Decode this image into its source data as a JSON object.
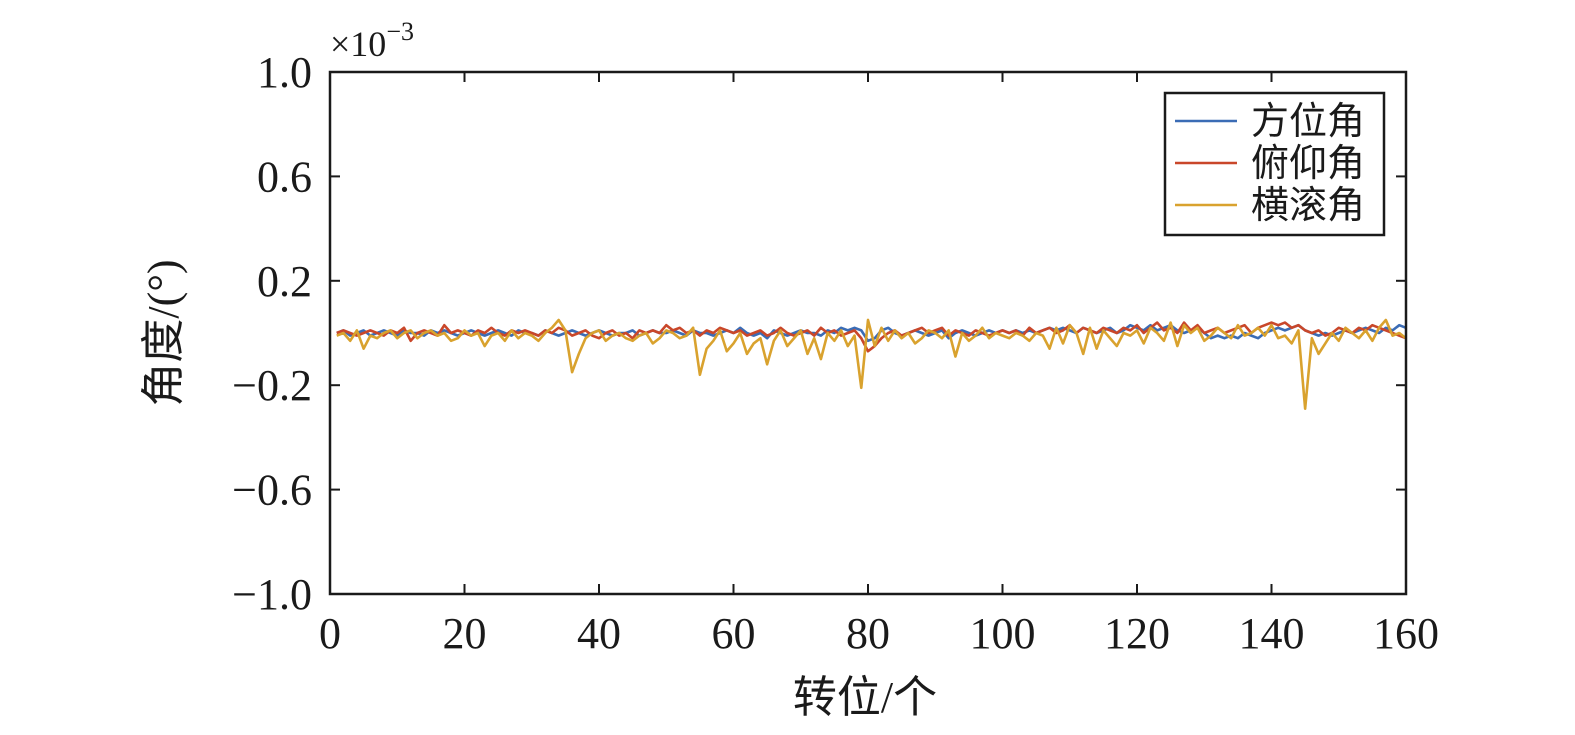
{
  "chart_data": {
    "type": "line",
    "xlabel": "转位/个",
    "ylabel": "角度/(°)",
    "y_multiplier": {
      "base": "×10",
      "exponent": "−3"
    },
    "legend": "upper right",
    "xlim": [
      0,
      160
    ],
    "xticks": [
      0,
      20,
      40,
      60,
      80,
      100,
      120,
      140,
      160
    ],
    "ylim": [
      -1.0,
      1.0
    ],
    "yticks": [
      {
        "value": 1.0,
        "label": "1.0"
      },
      0.6,
      0.2,
      {
        "value": -0.2,
        "label": "−0.2"
      },
      {
        "value": -0.6,
        "label": "−0.6"
      },
      {
        "value": -1.0,
        "label": "−1.0"
      }
    ],
    "x": [
      1,
      2,
      3,
      4,
      5,
      6,
      7,
      8,
      9,
      10,
      11,
      12,
      13,
      14,
      15,
      16,
      17,
      18,
      19,
      20,
      21,
      22,
      23,
      24,
      25,
      26,
      27,
      28,
      29,
      30,
      31,
      32,
      33,
      34,
      35,
      36,
      37,
      38,
      39,
      40,
      41,
      42,
      43,
      44,
      45,
      46,
      47,
      48,
      49,
      50,
      51,
      52,
      53,
      54,
      55,
      56,
      57,
      58,
      59,
      60,
      61,
      62,
      63,
      64,
      65,
      66,
      67,
      68,
      69,
      70,
      71,
      72,
      73,
      74,
      75,
      76,
      77,
      78,
      79,
      80,
      81,
      82,
      83,
      84,
      85,
      86,
      87,
      88,
      89,
      90,
      91,
      92,
      93,
      94,
      95,
      96,
      97,
      98,
      99,
      100,
      101,
      102,
      103,
      104,
      105,
      106,
      107,
      108,
      109,
      110,
      111,
      112,
      113,
      114,
      115,
      116,
      117,
      118,
      119,
      120,
      121,
      122,
      123,
      124,
      125,
      126,
      127,
      128,
      129,
      130,
      131,
      132,
      133,
      134,
      135,
      136,
      137,
      138,
      139,
      140,
      141,
      142,
      143,
      144,
      145,
      146,
      147,
      148,
      149,
      150,
      151,
      152,
      153,
      154,
      155,
      156,
      157,
      158,
      159,
      160
    ],
    "series": [
      {
        "name": "方位角",
        "color": "#3b6cb5",
        "values": [
          0.0,
          0.01,
          -0.01,
          0.0,
          0.01,
          -0.01,
          0.0,
          0.01,
          0.0,
          -0.01,
          0.01,
          0.0,
          0.0,
          -0.01,
          0.01,
          0.0,
          0.01,
          0.0,
          -0.01,
          0.0,
          0.01,
          0.0,
          -0.01,
          0.0,
          0.01,
          0.0,
          -0.01,
          0.01,
          0.0,
          0.0,
          -0.01,
          0.01,
          0.0,
          -0.01,
          0.0,
          0.01,
          0.0,
          -0.01,
          0.0,
          0.01,
          0.0,
          -0.01,
          0.0,
          0.0,
          0.01,
          -0.01,
          0.0,
          0.01,
          0.0,
          0.0,
          0.01,
          0.0,
          -0.01,
          0.01,
          0.0,
          0.0,
          -0.01,
          0.0,
          0.01,
          0.0,
          0.02,
          0.0,
          -0.01,
          0.0,
          -0.02,
          0.01,
          0.0,
          -0.01,
          0.0,
          0.01,
          0.0,
          0.0,
          -0.01,
          0.01,
          0.0,
          0.02,
          0.01,
          0.02,
          0.01,
          -0.03,
          -0.02,
          0.01,
          0.02,
          0.0,
          -0.01,
          0.0,
          0.01,
          0.0,
          -0.01,
          0.0,
          0.01,
          -0.02,
          0.0,
          0.01,
          0.0,
          -0.01,
          0.0,
          0.01,
          0.0,
          0.01,
          0.0,
          0.01,
          0.0,
          0.01,
          0.0,
          0.01,
          0.02,
          0.01,
          0.02,
          0.01,
          0.0,
          0.02,
          0.01,
          0.0,
          0.01,
          0.02,
          0.0,
          0.01,
          0.03,
          0.02,
          0.01,
          0.03,
          0.01,
          0.02,
          0.03,
          0.01,
          0.0,
          0.01,
          0.02,
          0.0,
          -0.02,
          -0.01,
          -0.02,
          -0.01,
          -0.02,
          0.0,
          -0.01,
          -0.02,
          0.0,
          0.01,
          0.02,
          0.01,
          0.02,
          0.03,
          0.01,
          0.0,
          -0.01,
          0.0,
          -0.01,
          0.0,
          0.01,
          0.0,
          0.01,
          0.02,
          0.01,
          0.0,
          0.02,
          0.01,
          0.03,
          0.02
        ]
      },
      {
        "name": "俯仰角",
        "color": "#c9472a",
        "values": [
          0.0,
          0.01,
          0.0,
          -0.01,
          0.0,
          0.01,
          0.0,
          -0.01,
          0.01,
          0.0,
          0.02,
          -0.03,
          0.0,
          0.01,
          0.0,
          -0.01,
          0.03,
          0.0,
          0.01,
          0.0,
          -0.01,
          0.01,
          0.0,
          0.02,
          0.0,
          -0.01,
          0.01,
          0.0,
          0.01,
          0.0,
          -0.01,
          0.01,
          0.0,
          0.02,
          0.01,
          -0.01,
          0.0,
          0.01,
          -0.01,
          -0.02,
          0.0,
          0.01,
          -0.01,
          0.0,
          -0.02,
          0.01,
          0.0,
          0.01,
          0.0,
          0.03,
          0.01,
          0.02,
          0.0,
          0.01,
          -0.01,
          0.01,
          0.0,
          0.02,
          0.01,
          0.0,
          0.01,
          -0.01,
          0.0,
          0.01,
          -0.01,
          0.0,
          0.02,
          0.0,
          -0.01,
          0.0,
          0.01,
          -0.01,
          0.02,
          0.0,
          0.01,
          -0.01,
          0.0,
          0.01,
          -0.02,
          -0.07,
          -0.05,
          -0.02,
          0.0,
          0.01,
          -0.01,
          0.0,
          0.01,
          0.02,
          0.0,
          0.01,
          0.02,
          -0.01,
          0.01,
          0.0,
          -0.01,
          0.01,
          0.0,
          -0.01,
          0.0,
          0.01,
          0.0,
          0.01,
          -0.01,
          0.02,
          0.0,
          0.01,
          0.02,
          0.0,
          0.01,
          0.03,
          0.0,
          0.02,
          0.01,
          0.0,
          0.02,
          0.01,
          0.0,
          0.02,
          0.01,
          0.03,
          0.0,
          0.02,
          0.04,
          0.01,
          0.02,
          0.0,
          0.04,
          0.01,
          0.03,
          0.0,
          0.01,
          0.02,
          0.0,
          0.01,
          0.02,
          0.03,
          0.0,
          0.02,
          0.03,
          0.04,
          0.03,
          0.04,
          0.02,
          0.03,
          0.01,
          0.0,
          0.01,
          -0.01,
          0.0,
          0.02,
          0.01,
          0.0,
          0.02,
          0.01,
          0.03,
          0.02,
          0.01,
          0.0,
          -0.01,
          -0.02
        ]
      },
      {
        "name": "横滚角",
        "color": "#d9a22e",
        "values": [
          -0.01,
          0.0,
          -0.03,
          0.01,
          -0.06,
          -0.01,
          -0.02,
          0.0,
          0.01,
          -0.02,
          0.0,
          0.01,
          -0.02,
          0.0,
          0.01,
          -0.01,
          0.0,
          -0.03,
          -0.02,
          0.01,
          -0.01,
          0.0,
          -0.05,
          -0.01,
          0.0,
          -0.03,
          0.01,
          -0.02,
          0.0,
          -0.01,
          -0.03,
          0.0,
          0.02,
          0.05,
          0.01,
          -0.15,
          -0.08,
          -0.02,
          0.0,
          0.01,
          -0.03,
          -0.01,
          0.0,
          -0.02,
          -0.03,
          -0.01,
          0.0,
          -0.04,
          -0.02,
          0.01,
          0.0,
          -0.02,
          -0.01,
          0.02,
          -0.16,
          -0.06,
          -0.03,
          0.01,
          -0.07,
          -0.04,
          0.0,
          -0.08,
          -0.04,
          -0.02,
          -0.12,
          -0.03,
          0.01,
          -0.05,
          -0.02,
          0.01,
          -0.08,
          -0.02,
          -0.1,
          0.0,
          -0.03,
          0.01,
          -0.05,
          -0.01,
          -0.21,
          0.05,
          -0.05,
          0.02,
          -0.03,
          0.01,
          -0.02,
          0.0,
          -0.04,
          -0.02,
          0.01,
          0.0,
          -0.02,
          0.01,
          -0.09,
          0.0,
          -0.03,
          -0.01,
          0.02,
          -0.02,
          0.0,
          -0.01,
          -0.02,
          0.0,
          -0.01,
          -0.03,
          0.0,
          -0.01,
          -0.06,
          0.02,
          -0.04,
          0.03,
          0.0,
          -0.08,
          0.02,
          -0.06,
          0.01,
          -0.02,
          -0.05,
          0.0,
          -0.01,
          0.01,
          -0.04,
          0.02,
          0.0,
          -0.03,
          0.04,
          -0.05,
          0.03,
          0.0,
          0.02,
          -0.03,
          -0.01,
          0.02,
          0.0,
          -0.02,
          0.03,
          -0.01,
          0.0,
          0.02,
          -0.01,
          0.03,
          -0.02,
          -0.01,
          -0.04,
          0.01,
          -0.29,
          -0.02,
          -0.08,
          -0.04,
          0.0,
          -0.03,
          0.02,
          0.0,
          -0.02,
          0.01,
          -0.03,
          0.02,
          0.05,
          -0.01,
          0.0,
          -0.02
        ]
      }
    ]
  }
}
